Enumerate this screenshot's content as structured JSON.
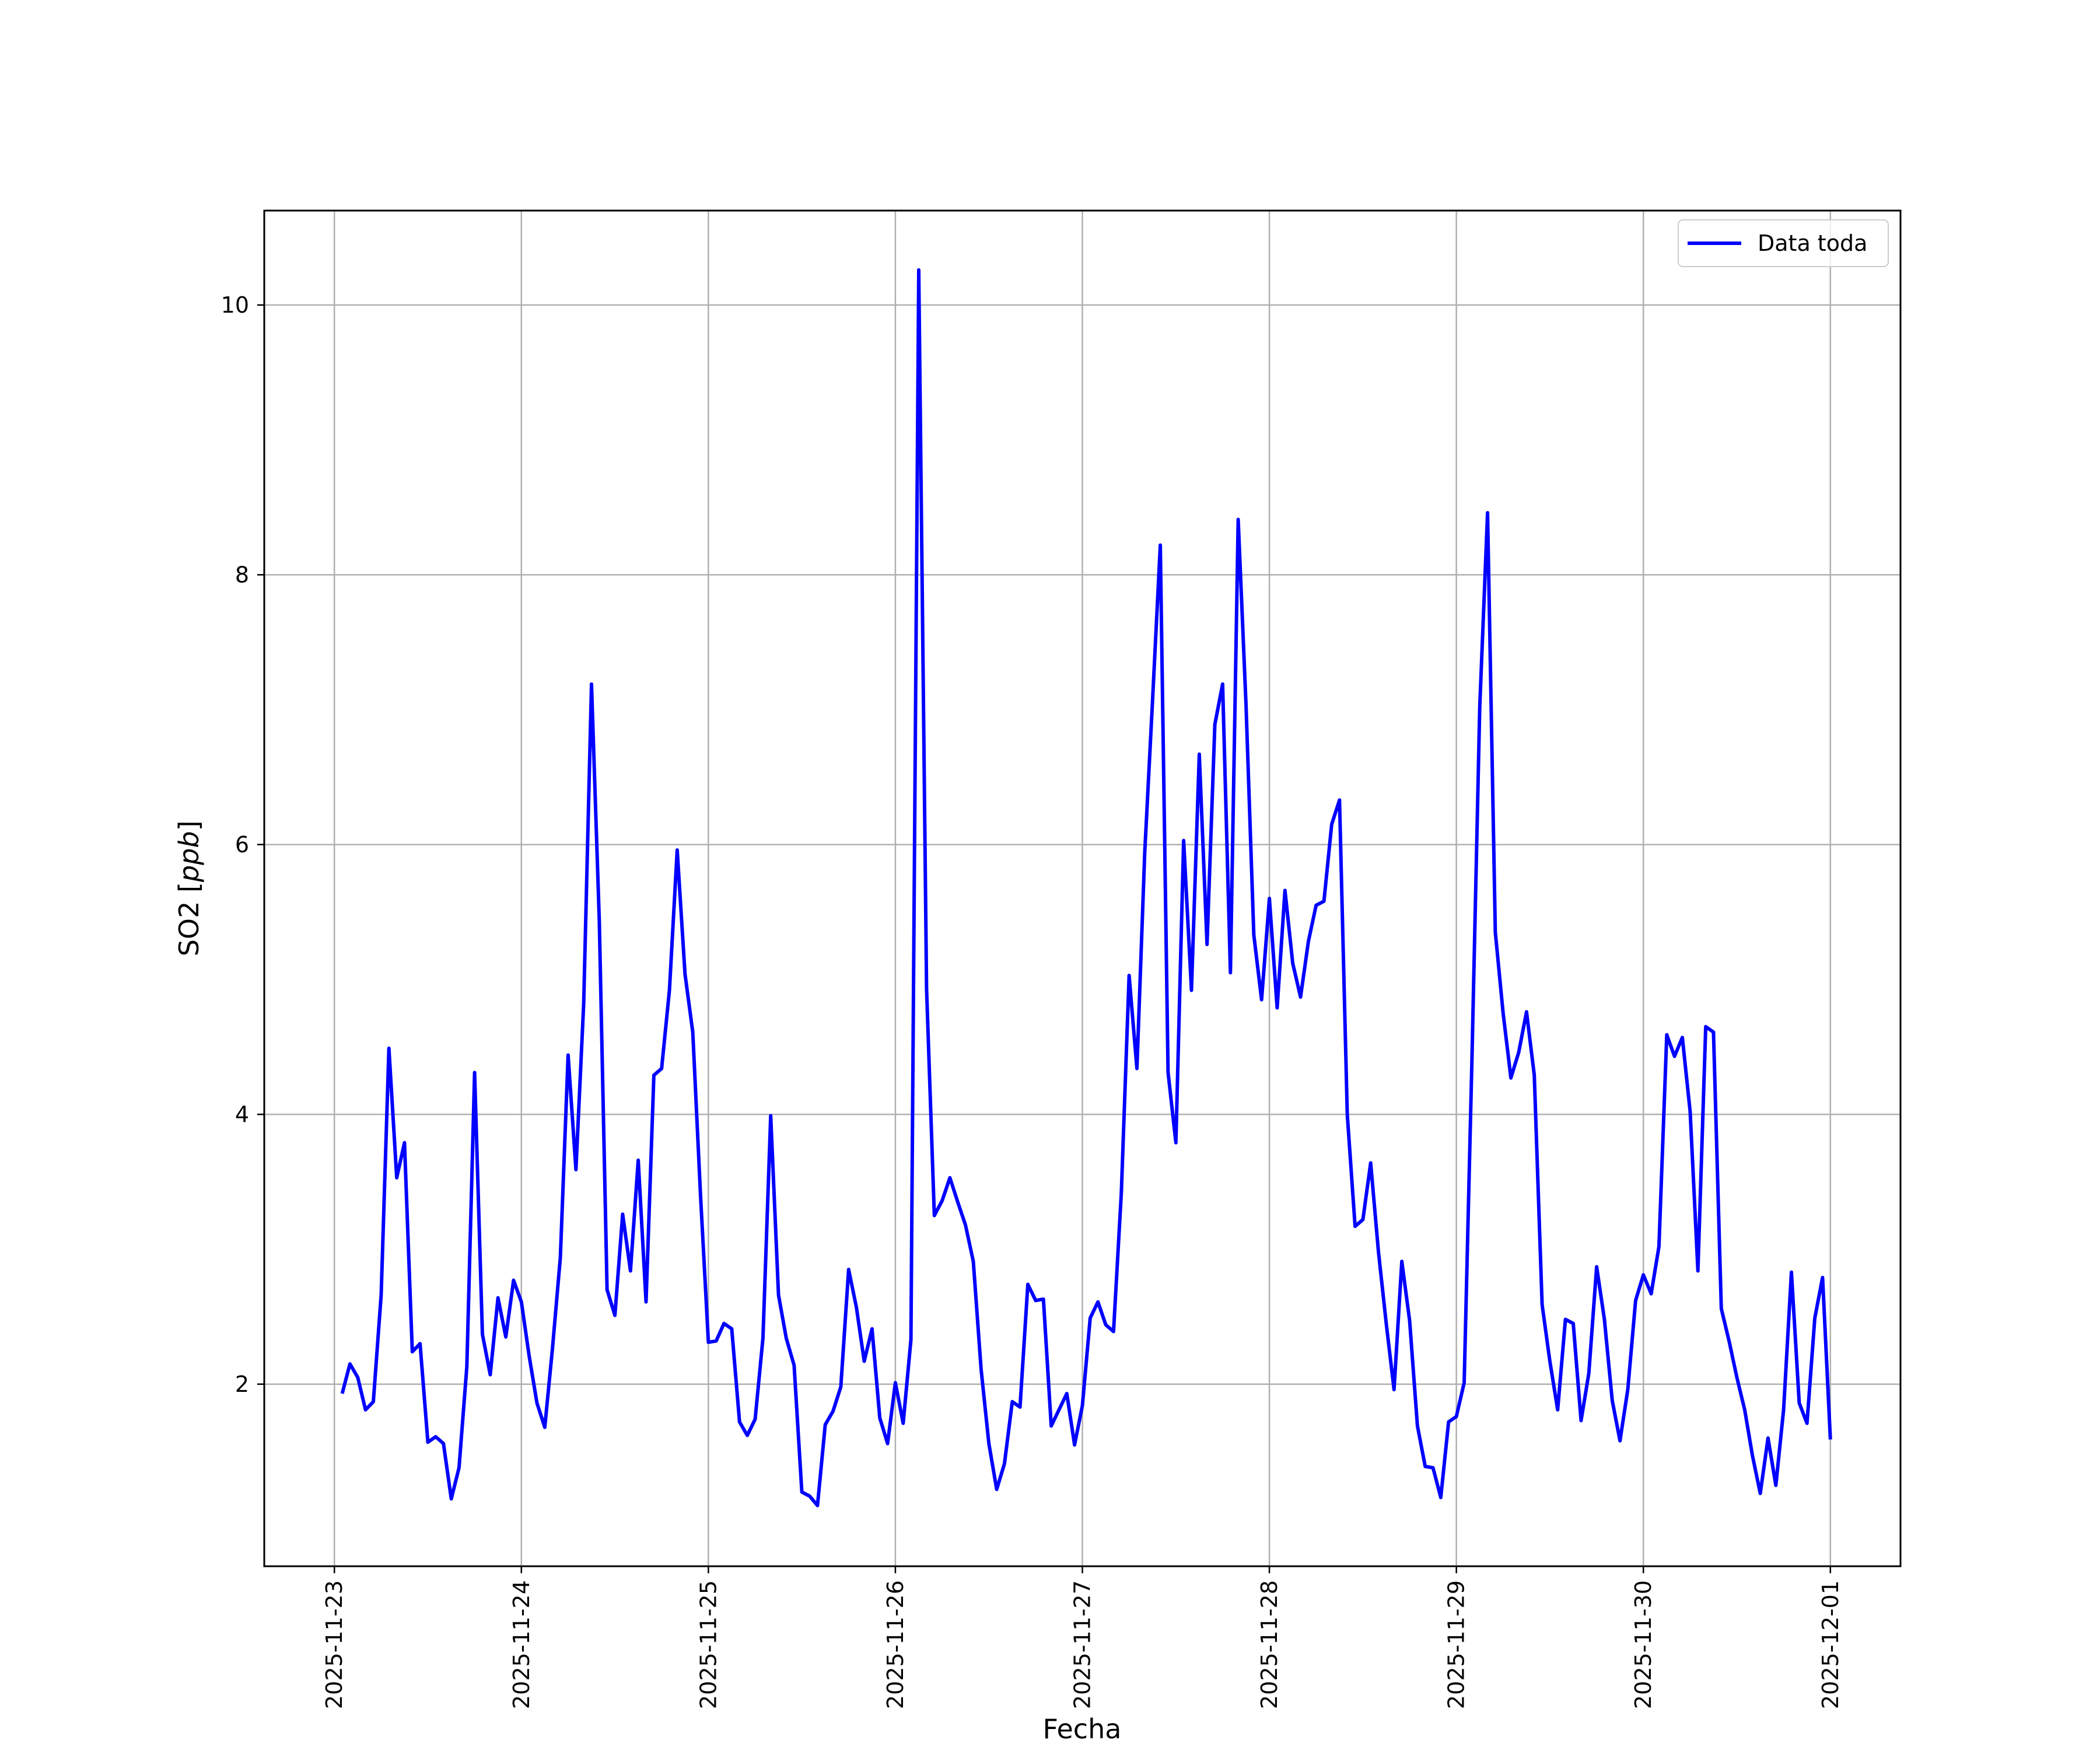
{
  "chart_data": {
    "type": "line",
    "title": "",
    "xlabel": "Fecha",
    "ylabel": "SO2",
    "ylabel_unit": "ppb",
    "x_axis": {
      "type": "date",
      "range": [
        "2025-11-22T15:00",
        "2025-12-01T09:00"
      ],
      "ticks": [
        "2025-11-23",
        "2025-11-24",
        "2025-11-25",
        "2025-11-26",
        "2025-11-27",
        "2025-11-28",
        "2025-11-29",
        "2025-11-30",
        "2025-12-01"
      ],
      "tick_rotation": "vertical"
    },
    "y_axis": {
      "range": [
        0.65,
        10.7
      ],
      "ticks": [
        "2",
        "4",
        "6",
        "8",
        "10"
      ]
    },
    "grid": true,
    "legend_position": "top-right",
    "series": [
      {
        "name": "Data toda",
        "color": "#0000ff",
        "x": [
          "2025-11-23T01:00",
          "2025-11-23T02:00",
          "2025-11-23T03:00",
          "2025-11-23T04:00",
          "2025-11-23T05:00",
          "2025-11-23T06:00",
          "2025-11-23T07:00",
          "2025-11-23T08:00",
          "2025-11-23T09:00",
          "2025-11-23T10:00",
          "2025-11-23T11:00",
          "2025-11-23T12:00",
          "2025-11-23T13:00",
          "2025-11-23T14:00",
          "2025-11-23T15:00",
          "2025-11-23T16:00",
          "2025-11-23T17:00",
          "2025-11-23T18:00",
          "2025-11-23T19:00",
          "2025-11-23T20:00",
          "2025-11-23T21:00",
          "2025-11-23T22:00",
          "2025-11-23T23:00",
          "2025-11-24T00:00",
          "2025-11-24T01:00",
          "2025-11-24T02:00",
          "2025-11-24T03:00",
          "2025-11-24T04:00",
          "2025-11-24T05:00",
          "2025-11-24T06:00",
          "2025-11-24T07:00",
          "2025-11-24T08:00",
          "2025-11-24T09:00",
          "2025-11-24T10:00",
          "2025-11-24T11:00",
          "2025-11-24T12:00",
          "2025-11-24T13:00",
          "2025-11-24T14:00",
          "2025-11-24T15:00",
          "2025-11-24T16:00",
          "2025-11-24T17:00",
          "2025-11-24T18:00",
          "2025-11-24T19:00",
          "2025-11-24T20:00",
          "2025-11-24T21:00",
          "2025-11-24T22:00",
          "2025-11-24T23:00",
          "2025-11-25T00:00",
          "2025-11-25T01:00",
          "2025-11-25T02:00",
          "2025-11-25T03:00",
          "2025-11-25T04:00",
          "2025-11-25T05:00",
          "2025-11-25T06:00",
          "2025-11-25T07:00",
          "2025-11-25T08:00",
          "2025-11-25T09:00",
          "2025-11-25T10:00",
          "2025-11-25T11:00",
          "2025-11-25T12:00",
          "2025-11-25T13:00",
          "2025-11-25T14:00",
          "2025-11-25T15:00",
          "2025-11-25T16:00",
          "2025-11-25T17:00",
          "2025-11-25T18:00",
          "2025-11-25T19:00",
          "2025-11-25T20:00",
          "2025-11-25T21:00",
          "2025-11-25T22:00",
          "2025-11-25T23:00",
          "2025-11-26T00:00",
          "2025-11-26T01:00",
          "2025-11-26T02:00",
          "2025-11-26T03:00",
          "2025-11-26T04:00",
          "2025-11-26T05:00",
          "2025-11-26T06:00",
          "2025-11-26T07:00",
          "2025-11-26T08:00",
          "2025-11-26T09:00",
          "2025-11-26T10:00",
          "2025-11-26T11:00",
          "2025-11-26T12:00",
          "2025-11-26T13:00",
          "2025-11-26T14:00",
          "2025-11-26T15:00",
          "2025-11-26T16:00",
          "2025-11-26T17:00",
          "2025-11-26T18:00",
          "2025-11-26T19:00",
          "2025-11-26T20:00",
          "2025-11-26T21:00",
          "2025-11-26T22:00",
          "2025-11-26T23:00",
          "2025-11-27T00:00",
          "2025-11-27T01:00",
          "2025-11-27T02:00",
          "2025-11-27T03:00",
          "2025-11-27T04:00",
          "2025-11-27T05:00",
          "2025-11-27T06:00",
          "2025-11-27T07:00",
          "2025-11-27T08:00",
          "2025-11-27T09:00",
          "2025-11-27T10:00",
          "2025-11-27T11:00",
          "2025-11-27T12:00",
          "2025-11-27T13:00",
          "2025-11-27T14:00",
          "2025-11-27T15:00",
          "2025-11-27T16:00",
          "2025-11-27T17:00",
          "2025-11-27T18:00",
          "2025-11-27T19:00",
          "2025-11-27T20:00",
          "2025-11-27T21:00",
          "2025-11-27T22:00",
          "2025-11-27T23:00",
          "2025-11-28T00:00",
          "2025-11-28T01:00",
          "2025-11-28T02:00",
          "2025-11-28T03:00",
          "2025-11-28T04:00",
          "2025-11-28T05:00",
          "2025-11-28T06:00",
          "2025-11-28T07:00",
          "2025-11-28T08:00",
          "2025-11-28T09:00",
          "2025-11-28T10:00",
          "2025-11-28T11:00",
          "2025-11-28T12:00",
          "2025-11-28T13:00",
          "2025-11-28T14:00",
          "2025-11-28T15:00",
          "2025-11-28T16:00",
          "2025-11-28T17:00",
          "2025-11-28T18:00",
          "2025-11-28T19:00",
          "2025-11-28T20:00",
          "2025-11-28T21:00",
          "2025-11-28T22:00",
          "2025-11-28T23:00",
          "2025-11-29T00:00",
          "2025-11-29T01:00",
          "2025-11-29T02:00",
          "2025-11-29T03:00",
          "2025-11-29T04:00",
          "2025-11-29T05:00",
          "2025-11-29T06:00",
          "2025-11-29T07:00",
          "2025-11-29T08:00",
          "2025-11-29T09:00",
          "2025-11-29T10:00",
          "2025-11-29T11:00",
          "2025-11-29T12:00",
          "2025-11-29T13:00",
          "2025-11-29T14:00",
          "2025-11-29T15:00",
          "2025-11-29T16:00",
          "2025-11-29T17:00",
          "2025-11-29T18:00",
          "2025-11-29T19:00",
          "2025-11-29T20:00",
          "2025-11-29T21:00",
          "2025-11-29T22:00",
          "2025-11-29T23:00",
          "2025-11-30T00:00",
          "2025-11-30T01:00",
          "2025-11-30T02:00",
          "2025-11-30T03:00",
          "2025-11-30T04:00",
          "2025-11-30T05:00",
          "2025-11-30T06:00",
          "2025-11-30T07:00",
          "2025-11-30T08:00",
          "2025-11-30T09:00",
          "2025-11-30T10:00",
          "2025-11-30T11:00",
          "2025-11-30T12:00",
          "2025-11-30T13:00",
          "2025-11-30T14:00",
          "2025-11-30T15:00",
          "2025-11-30T16:00",
          "2025-11-30T17:00",
          "2025-11-30T18:00",
          "2025-11-30T19:00",
          "2025-11-30T20:00",
          "2025-11-30T21:00",
          "2025-11-30T22:00",
          "2025-11-30T23:00",
          "2025-12-01T00:00"
        ],
        "y": [
          1.93,
          2.15,
          2.05,
          1.81,
          1.87,
          2.66,
          4.49,
          3.53,
          3.79,
          2.24,
          2.3,
          1.57,
          1.61,
          1.56,
          1.15,
          1.38,
          2.13,
          4.31,
          2.37,
          2.07,
          2.64,
          2.35,
          2.77,
          2.61,
          2.21,
          1.86,
          1.68,
          2.27,
          2.94,
          4.44,
          3.59,
          4.82,
          7.19,
          5.43,
          2.7,
          2.51,
          3.26,
          2.84,
          3.66,
          2.61,
          4.29,
          4.34,
          4.92,
          5.96,
          5.04,
          4.61,
          3.39,
          2.31,
          2.32,
          2.45,
          2.41,
          1.72,
          1.62,
          1.74,
          2.34,
          3.99,
          2.66,
          2.34,
          2.14,
          1.2,
          1.17,
          1.1,
          1.7,
          1.8,
          1.98,
          2.85,
          2.57,
          2.17,
          2.41,
          1.75,
          1.56,
          2.01,
          1.71,
          2.33,
          10.26,
          4.93,
          3.25,
          3.36,
          3.53,
          3.35,
          3.18,
          2.91,
          2.11,
          1.56,
          1.22,
          1.41,
          1.87,
          1.83,
          2.74,
          2.62,
          2.63,
          1.69,
          1.81,
          1.93,
          1.55,
          1.84,
          2.49,
          2.61,
          2.44,
          2.39,
          3.42,
          5.03,
          4.34,
          5.94,
          7.06,
          8.22,
          4.31,
          3.79,
          6.03,
          4.92,
          6.67,
          5.26,
          6.89,
          7.19,
          5.05,
          8.41,
          7.04,
          5.33,
          4.85,
          5.6,
          4.79,
          5.66,
          5.12,
          4.87,
          5.28,
          5.55,
          5.58,
          6.15,
          6.33,
          4.0,
          3.17,
          3.22,
          3.64,
          2.98,
          2.45,
          1.96,
          2.91,
          2.47,
          1.69,
          1.39,
          1.38,
          1.16,
          1.72,
          1.76,
          2.01,
          4.42,
          7.02,
          8.46,
          5.35,
          4.75,
          4.27,
          4.46,
          4.76,
          4.29,
          2.59,
          2.17,
          1.81,
          2.48,
          2.45,
          1.73,
          2.08,
          2.87,
          2.48,
          1.88,
          1.58,
          1.96,
          2.62,
          2.81,
          2.67,
          3.02,
          4.59,
          4.43,
          4.57,
          4.02,
          2.84,
          4.65,
          4.61,
          2.56,
          2.32,
          2.05,
          1.81,
          1.47,
          1.19,
          1.6,
          1.25,
          1.81,
          2.83,
          1.86,
          1.71,
          2.49,
          2.79,
          1.59
        ]
      }
    ]
  }
}
